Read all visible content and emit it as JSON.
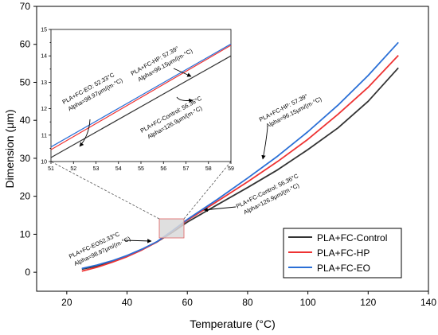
{
  "chart_data": [
    {
      "type": "line",
      "xlabel": "Temperature (°C)",
      "ylabel": "Dimension (μm)",
      "xlim": [
        10,
        140
      ],
      "ylim": [
        -5,
        70
      ],
      "xticks": [
        20,
        40,
        60,
        80,
        100,
        120,
        140
      ],
      "yticks": [
        0,
        10,
        20,
        30,
        40,
        50,
        60,
        70
      ],
      "legend": {
        "placement": "bottom-right"
      },
      "series": [
        {
          "name": "PLA+FC-Control",
          "color": "#333333",
          "x": [
            25,
            30,
            35,
            40,
            45,
            50,
            55,
            60,
            70,
            80,
            90,
            100,
            110,
            120,
            130
          ],
          "y": [
            0.8,
            1.6,
            2.8,
            4.3,
            6.0,
            8.0,
            10.5,
            13.2,
            17.8,
            22.3,
            27.0,
            32.3,
            38.0,
            45.0,
            53.8
          ]
        },
        {
          "name": "PLA+FC-HP",
          "color": "#ee3333",
          "x": [
            25,
            30,
            35,
            40,
            45,
            50,
            55,
            60,
            70,
            80,
            90,
            100,
            110,
            120,
            130
          ],
          "y": [
            0.3,
            1.3,
            2.6,
            4.1,
            5.9,
            8.0,
            10.8,
            13.7,
            18.7,
            23.8,
            29.2,
            35.0,
            41.6,
            48.7,
            57.1
          ]
        },
        {
          "name": "PLA+FC-EO",
          "color": "#2a6fd6",
          "x": [
            25,
            30,
            35,
            40,
            45,
            50,
            55,
            60,
            70,
            80,
            90,
            100,
            110,
            120,
            130
          ],
          "y": [
            1.0,
            1.9,
            3.0,
            4.4,
            6.1,
            8.1,
            10.9,
            13.9,
            19.2,
            24.8,
            30.6,
            37.0,
            44.0,
            51.8,
            60.5
          ]
        }
      ],
      "annotations": [
        {
          "line1": "PLA+FC-HP: 57.39°",
          "line2": "Alpha=96.15μm/(m·°C)"
        },
        {
          "line1": "PLA+FC-Control: 56.36°C",
          "line2": "Alpha=126.9μm/(m·°C)"
        },
        {
          "line1": "PLA+FC-EO52.33°C",
          "line2": "Alpha=98.97μm/(m·°C)"
        }
      ],
      "zoom_region": {
        "x": [
          51,
          59
        ],
        "y": [
          10,
          15
        ]
      }
    },
    {
      "type": "line",
      "inset": true,
      "xlim": [
        51,
        59
      ],
      "ylim": [
        10,
        15
      ],
      "xticks": [
        51,
        52,
        53,
        54,
        55,
        56,
        57,
        58,
        59
      ],
      "yticks": [
        10,
        10.5,
        11,
        11.5,
        12,
        12.5,
        13,
        13.5,
        14,
        14.5,
        15
      ],
      "series": [
        {
          "name": "PLA+FC-Control",
          "color": "#333333",
          "x": [
            51,
            59
          ],
          "y": [
            10.15,
            14.0
          ]
        },
        {
          "name": "PLA+FC-HP",
          "color": "#ee3333",
          "x": [
            51,
            59
          ],
          "y": [
            10.45,
            14.4
          ]
        },
        {
          "name": "PLA+FC-EO",
          "color": "#2a6fd6",
          "x": [
            51,
            59
          ],
          "y": [
            10.55,
            14.45
          ]
        }
      ],
      "annotations": [
        {
          "line1": "PLA+FC-HP: 57.39°",
          "line2": "Alpha=96.15μm/(m·°C)"
        },
        {
          "line1": "PLA+FC-EO: 52.33°C",
          "line2": "Alpha=98.97μm/(m·°C)"
        },
        {
          "line1": "PLA+FC-Control: 56.36°C",
          "line2": "Alpha=126.9μm/(m·°C)"
        }
      ]
    }
  ]
}
